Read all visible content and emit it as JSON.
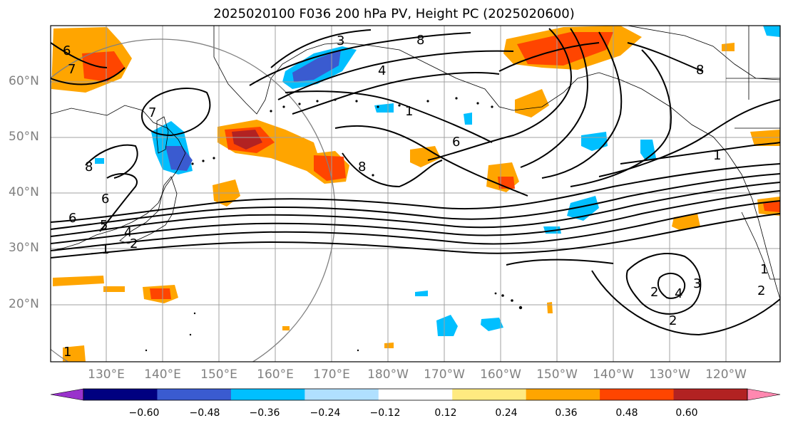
{
  "title": "2025020100 F036 200 hPa PV, Height PC (2025020600)",
  "lat_labels": [
    "60°N",
    "50°N",
    "40°N",
    "30°N",
    "20°N"
  ],
  "lon_labels": [
    "130°E",
    "140°E",
    "150°E",
    "160°E",
    "170°E",
    "180°W",
    "170°W",
    "160°W",
    "150°W",
    "140°W",
    "130°W",
    "120°W"
  ],
  "colorbar": {
    "ticks": [
      "−0.60",
      "−0.48",
      "−0.36",
      "−0.24",
      "−0.12",
      "0.12",
      "0.24",
      "0.36",
      "0.48",
      "0.60"
    ],
    "colors": [
      "#9932cc",
      "#000080",
      "#3a5bd0",
      "#00bfff",
      "#b0e0ff",
      "#ffffff",
      "#ffea80",
      "#ffa500",
      "#ff4500",
      "#b22222",
      "#ff88b0"
    ]
  },
  "contour_labels": [
    "6",
    "7",
    "3",
    "4",
    "8",
    "1",
    "6",
    "8",
    "6",
    "5",
    "4",
    "2",
    "1",
    "6",
    "8",
    "8",
    "7",
    "1",
    "2",
    "4",
    "3",
    "2",
    "1",
    "2",
    "1"
  ]
}
